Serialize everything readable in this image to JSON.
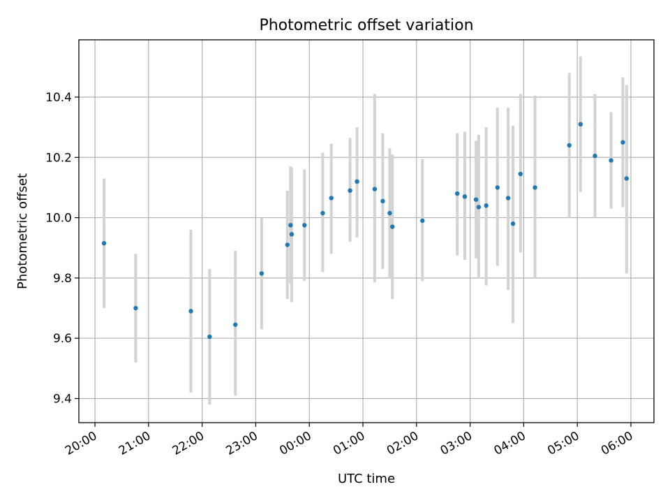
{
  "chart_data": {
    "type": "scatter",
    "title": "Photometric offset variation",
    "xlabel": "UTC time",
    "ylabel": "Photometric offset",
    "x_unit": "hours after 20:00 UTC",
    "xlim": [
      -0.3,
      10.43
    ],
    "ylim": [
      9.32,
      10.59
    ],
    "x_ticks": [
      0,
      1,
      2,
      3,
      4,
      5,
      6,
      7,
      8,
      9,
      10
    ],
    "x_tick_labels": [
      "20:00",
      "21:00",
      "22:00",
      "23:00",
      "00:00",
      "01:00",
      "02:00",
      "03:00",
      "04:00",
      "05:00",
      "06:00"
    ],
    "y_ticks": [
      9.4,
      9.6,
      9.8,
      10.0,
      10.2,
      10.4
    ],
    "y_tick_labels": [
      "9.4",
      "9.6",
      "9.8",
      "10.0",
      "10.2",
      "10.4"
    ],
    "grid": true,
    "point_color": "#1f77b4",
    "errorbar_color": "#d3d3d3",
    "points": [
      {
        "t": 0.17,
        "y": 9.915,
        "lo": 9.7,
        "hi": 10.13
      },
      {
        "t": 0.76,
        "y": 9.7,
        "lo": 9.52,
        "hi": 9.88
      },
      {
        "t": 1.79,
        "y": 9.69,
        "lo": 9.42,
        "hi": 9.96
      },
      {
        "t": 2.14,
        "y": 9.605,
        "lo": 9.38,
        "hi": 9.83
      },
      {
        "t": 2.62,
        "y": 9.645,
        "lo": 9.41,
        "hi": 9.89
      },
      {
        "t": 3.11,
        "y": 9.815,
        "lo": 9.63,
        "hi": 10.0
      },
      {
        "t": 3.59,
        "y": 9.91,
        "lo": 9.73,
        "hi": 10.09
      },
      {
        "t": 3.65,
        "y": 9.975,
        "lo": 9.78,
        "hi": 10.17
      },
      {
        "t": 3.67,
        "y": 9.945,
        "lo": 9.72,
        "hi": 10.165
      },
      {
        "t": 3.91,
        "y": 9.975,
        "lo": 9.79,
        "hi": 10.16
      },
      {
        "t": 4.25,
        "y": 10.015,
        "lo": 9.82,
        "hi": 10.215
      },
      {
        "t": 4.41,
        "y": 10.065,
        "lo": 9.88,
        "hi": 10.245
      },
      {
        "t": 4.76,
        "y": 10.09,
        "lo": 9.92,
        "hi": 10.265
      },
      {
        "t": 4.89,
        "y": 10.12,
        "lo": 9.935,
        "hi": 10.3
      },
      {
        "t": 5.22,
        "y": 10.095,
        "lo": 9.785,
        "hi": 10.41
      },
      {
        "t": 5.37,
        "y": 10.055,
        "lo": 9.83,
        "hi": 10.28
      },
      {
        "t": 5.5,
        "y": 10.015,
        "lo": 9.8,
        "hi": 10.23
      },
      {
        "t": 5.55,
        "y": 9.97,
        "lo": 9.73,
        "hi": 10.21
      },
      {
        "t": 6.11,
        "y": 9.99,
        "lo": 9.79,
        "hi": 10.195
      },
      {
        "t": 6.76,
        "y": 10.08,
        "lo": 9.875,
        "hi": 10.28
      },
      {
        "t": 6.9,
        "y": 10.07,
        "lo": 9.86,
        "hi": 10.285
      },
      {
        "t": 7.11,
        "y": 10.06,
        "lo": 9.865,
        "hi": 10.255
      },
      {
        "t": 7.16,
        "y": 10.035,
        "lo": 9.8,
        "hi": 10.275
      },
      {
        "t": 7.3,
        "y": 10.04,
        "lo": 9.775,
        "hi": 10.3
      },
      {
        "t": 7.51,
        "y": 10.1,
        "lo": 9.84,
        "hi": 10.365
      },
      {
        "t": 7.71,
        "y": 10.065,
        "lo": 9.76,
        "hi": 10.365
      },
      {
        "t": 7.8,
        "y": 9.98,
        "lo": 9.65,
        "hi": 10.305
      },
      {
        "t": 7.94,
        "y": 10.145,
        "lo": 9.885,
        "hi": 10.41
      },
      {
        "t": 8.21,
        "y": 10.1,
        "lo": 9.8,
        "hi": 10.405
      },
      {
        "t": 8.85,
        "y": 10.24,
        "lo": 10.0,
        "hi": 10.48
      },
      {
        "t": 9.06,
        "y": 10.31,
        "lo": 10.085,
        "hi": 10.535
      },
      {
        "t": 9.33,
        "y": 10.205,
        "lo": 10.0,
        "hi": 10.41
      },
      {
        "t": 9.63,
        "y": 10.19,
        "lo": 10.03,
        "hi": 10.35
      },
      {
        "t": 9.85,
        "y": 10.25,
        "lo": 10.035,
        "hi": 10.465
      },
      {
        "t": 9.92,
        "y": 10.13,
        "lo": 9.815,
        "hi": 10.44
      }
    ]
  }
}
